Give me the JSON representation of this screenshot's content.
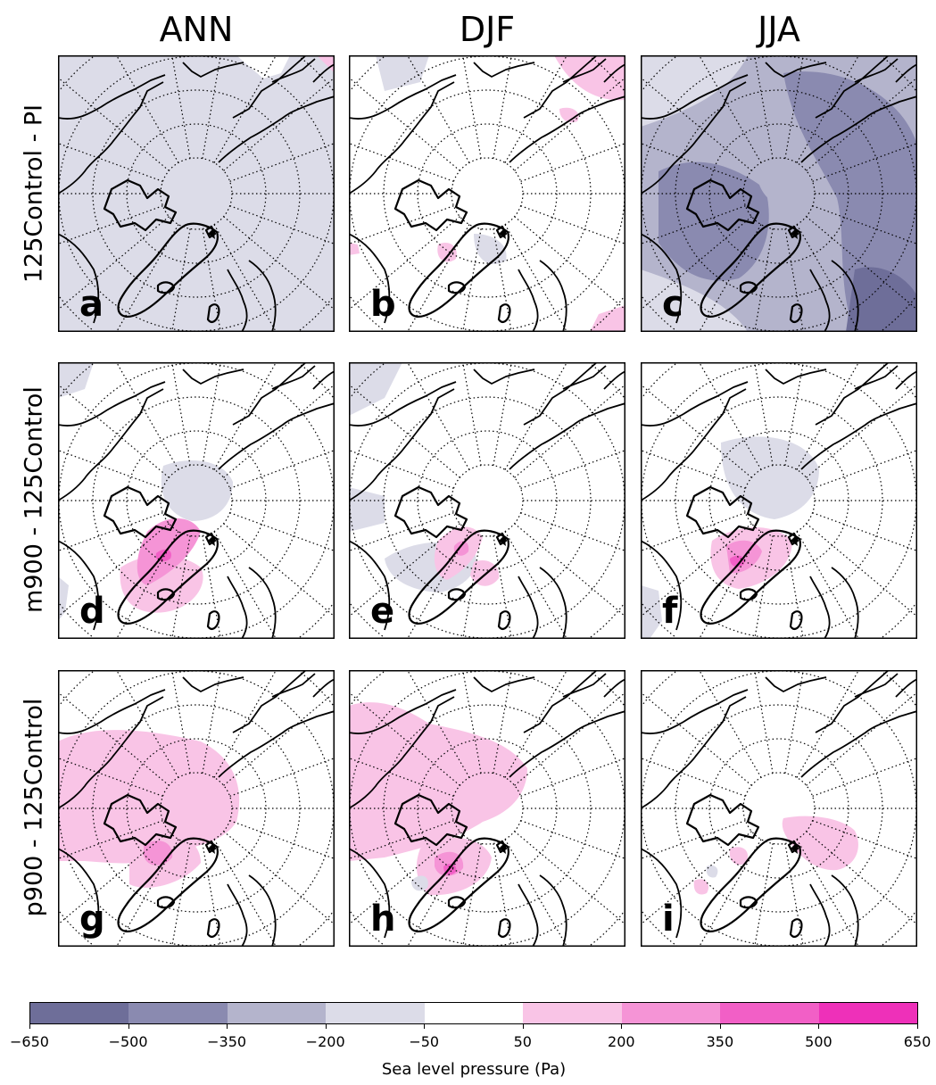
{
  "columns": [
    "ANN",
    "DJF",
    "JJA"
  ],
  "rows": [
    "125Control - PI",
    "m900 - 125Control",
    "p900 - 125Control"
  ],
  "panel_letters": [
    "a",
    "b",
    "c",
    "d",
    "e",
    "f",
    "g",
    "h",
    "i"
  ],
  "colorbar": {
    "label": "Sea level pressure (Pa)",
    "ticks": [
      "−650",
      "−500",
      "−350",
      "−200",
      "−50",
      "50",
      "200",
      "350",
      "500",
      "650"
    ],
    "colors": [
      "#6e6e99",
      "#8a8ab0",
      "#b4b4cc",
      "#dcdce8",
      "#ffffff",
      "#f9c4e6",
      "#f594d6",
      "#f25fc6",
      "#ee30b9"
    ]
  },
  "map_fields": [
    "ANN 125Control-PI: weak negative (-200 to -50 Pa) over most of domain",
    "DJF 125Control-PI: near zero, small positive patches",
    "JJA 125Control-PI: strong negative (-500 to -350 Pa) over Arctic",
    "ANN m900-125Control: positive over Greenland",
    "DJF m900-125Control: positive over Greenland",
    "JJA m900-125Control: positive over Greenland",
    "ANN p900-125Control: positive over Canadian Arctic and pole",
    "DJF p900-125Control: positive over Canadian Arctic",
    "JJA p900-125Control: small positive near Greenland/Scandinavia"
  ]
}
